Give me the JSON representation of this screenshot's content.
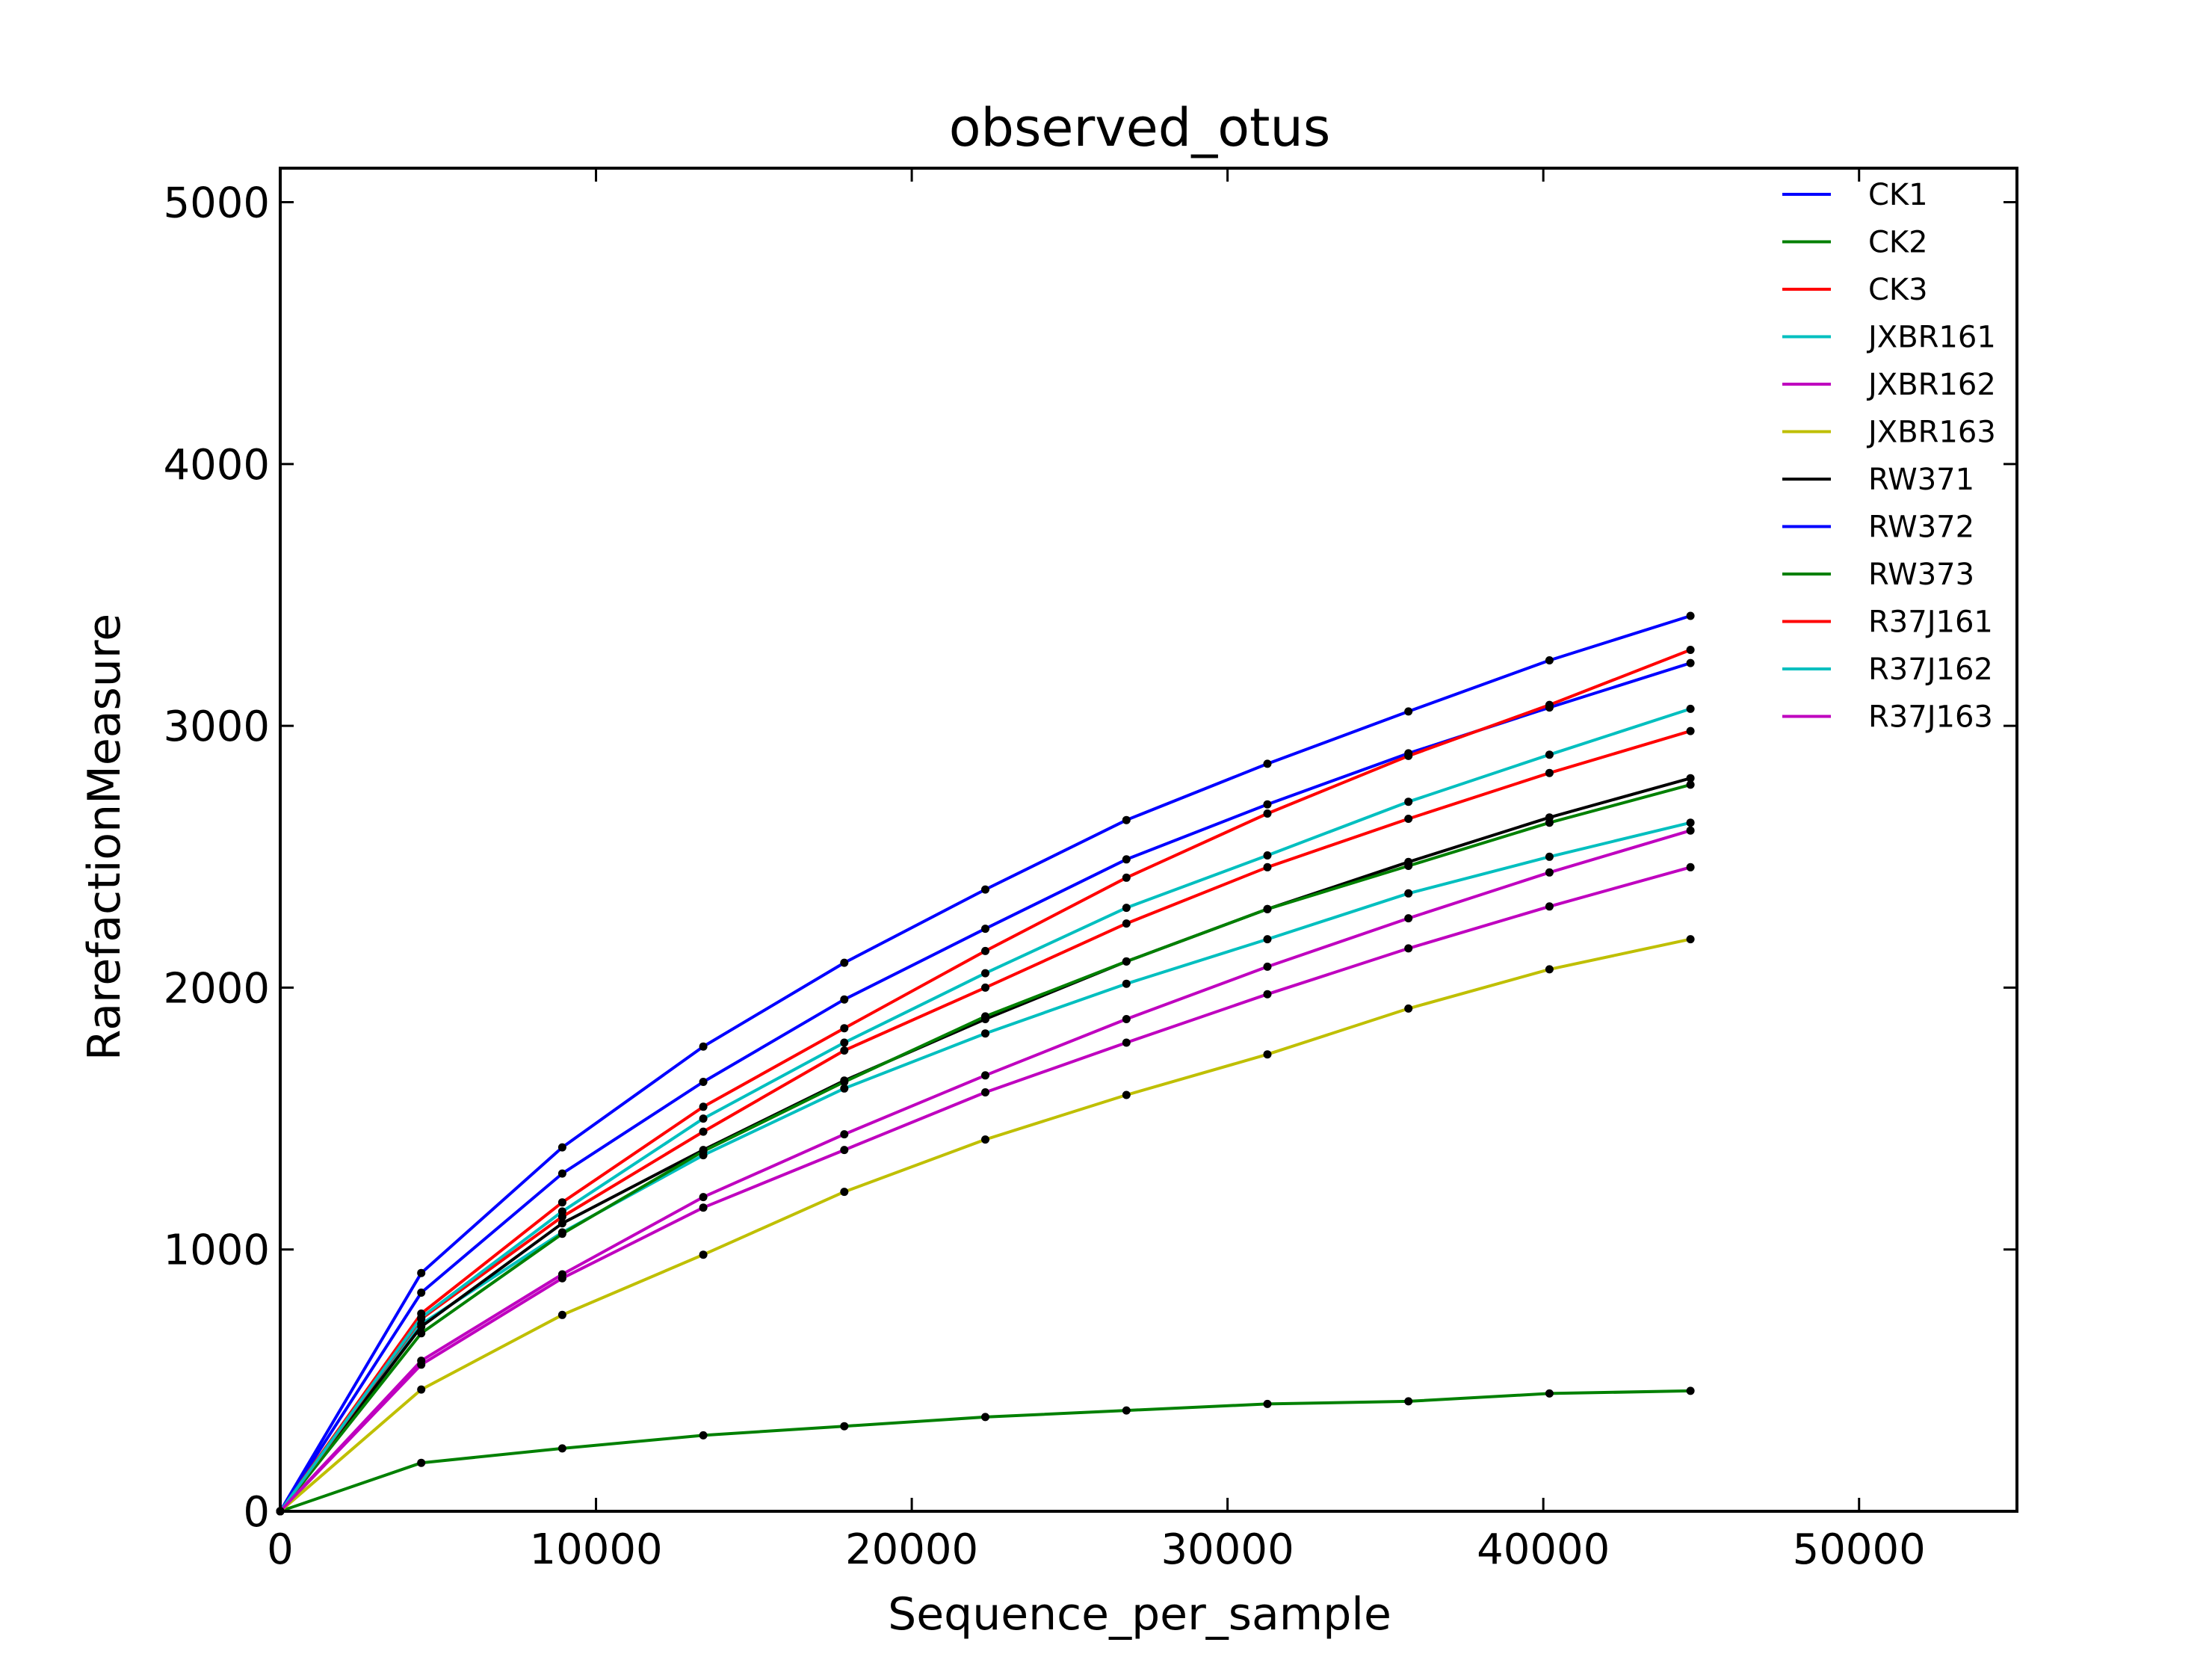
{
  "chart_data": {
    "type": "line",
    "title": "observed_otus",
    "xlabel": "Sequence_per_sample",
    "ylabel": "RarefactionMeasure",
    "xlim": [
      0,
      55000
    ],
    "ylim": [
      0,
      5130
    ],
    "xticks": [
      0,
      10000,
      20000,
      30000,
      40000,
      50000
    ],
    "yticks": [
      0,
      1000,
      2000,
      3000,
      4000,
      5000
    ],
    "xtick_labels": [
      "0",
      "10000",
      "20000",
      "30000",
      "40000",
      "50000"
    ],
    "ytick_labels": [
      "0",
      "1000",
      "2000",
      "3000",
      "4000",
      "5000"
    ],
    "grid": false,
    "legend_position": "top-right",
    "marker_color": "#000000",
    "x": [
      0,
      4466,
      8932,
      13398,
      17864,
      22330,
      26796,
      31262,
      35728,
      40194,
      44660
    ],
    "series": [
      {
        "name": "CK1",
        "color": "#0000ff",
        "values": [
          0,
          835,
          1290,
          1640,
          1955,
          2225,
          2490,
          2700,
          2895,
          3070,
          3240
        ]
      },
      {
        "name": "CK2",
        "color": "#008000",
        "values": [
          0,
          185,
          240,
          290,
          325,
          360,
          385,
          410,
          420,
          450,
          460
        ]
      },
      {
        "name": "CK3",
        "color": "#ff0000",
        "values": [
          0,
          755,
          1180,
          1545,
          1845,
          2140,
          2420,
          2665,
          2885,
          3080,
          3290
        ]
      },
      {
        "name": "JXBR161",
        "color": "#00bfbf",
        "values": [
          0,
          715,
          1065,
          1360,
          1615,
          1825,
          2015,
          2185,
          2360,
          2500,
          2630
        ]
      },
      {
        "name": "JXBR162",
        "color": "#bf00bf",
        "values": [
          0,
          560,
          890,
          1160,
          1380,
          1600,
          1790,
          1975,
          2150,
          2310,
          2460
        ]
      },
      {
        "name": "JXBR163",
        "color": "#bfbf00",
        "values": [
          0,
          465,
          750,
          980,
          1220,
          1420,
          1590,
          1745,
          1920,
          2070,
          2185
        ]
      },
      {
        "name": "RW371",
        "color": "#000000",
        "values": [
          0,
          705,
          1100,
          1380,
          1645,
          1880,
          2100,
          2300,
          2480,
          2650,
          2800
        ]
      },
      {
        "name": "RW372",
        "color": "#0000ff",
        "values": [
          0,
          910,
          1390,
          1775,
          2095,
          2375,
          2640,
          2855,
          3055,
          3250,
          3420
        ]
      },
      {
        "name": "RW373",
        "color": "#008000",
        "values": [
          0,
          680,
          1060,
          1375,
          1640,
          1890,
          2100,
          2300,
          2465,
          2630,
          2775
        ]
      },
      {
        "name": "R37J161",
        "color": "#ff0000",
        "values": [
          0,
          735,
          1125,
          1450,
          1760,
          2000,
          2245,
          2460,
          2645,
          2820,
          2980
        ]
      },
      {
        "name": "R37J162",
        "color": "#00bfbf",
        "values": [
          0,
          740,
          1145,
          1500,
          1790,
          2055,
          2305,
          2505,
          2710,
          2890,
          3065
        ]
      },
      {
        "name": "R37J163",
        "color": "#bf00bf",
        "values": [
          0,
          575,
          905,
          1200,
          1440,
          1665,
          1880,
          2080,
          2265,
          2440,
          2600
        ]
      }
    ]
  }
}
